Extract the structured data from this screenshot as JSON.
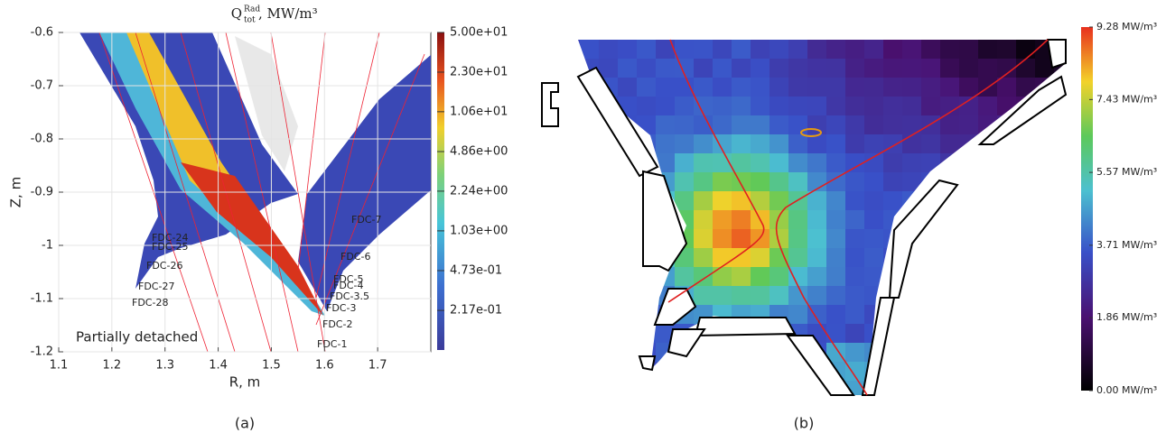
{
  "chart_data": [
    {
      "type": "heatmap",
      "title_symbol": "Q",
      "title_superscript": "Rad",
      "title_subscript": "tot",
      "title_unit": ", MW/m³",
      "x_label": "R, m",
      "y_label": "Z, m",
      "xlim": [
        1.1,
        1.8
      ],
      "xticks": [
        1.1,
        1.2,
        1.3,
        1.4,
        1.5,
        1.6,
        1.7
      ],
      "ylim": [
        -1.2,
        -0.6
      ],
      "yticks": [
        -0.6,
        -0.7,
        -0.8,
        -0.9,
        -1,
        -1.1,
        -1.2
      ],
      "colorbar_log_scale": true,
      "clim": [
        0.1,
        50
      ],
      "colorbar_ticks": [
        {
          "value": 50,
          "label": "5.00e+01"
        },
        {
          "value": 23,
          "label": "2.30e+01"
        },
        {
          "value": 10.6,
          "label": "1.06e+01"
        },
        {
          "value": 4.86,
          "label": "4.86e+00"
        },
        {
          "value": 2.24,
          "label": "2.24e+00"
        },
        {
          "value": 1.03,
          "label": "1.03e+00"
        },
        {
          "value": 0.473,
          "label": "4.73e-01"
        },
        {
          "value": 0.217,
          "label": "2.17e-01"
        }
      ],
      "annotations": [
        "FDC-7",
        "FDC-6",
        "FDC-5",
        "FDC-4",
        "FDC-3.5",
        "FDC-3",
        "FDC-2",
        "FDC-1",
        "FDC-24",
        "FDC-25",
        "FDC-26",
        "FDC-27",
        "FDC-28",
        "Partially detached"
      ],
      "panel_label": "(a)"
    },
    {
      "type": "image",
      "clim": [
        0,
        9.28
      ],
      "colorbar_ticks": [
        {
          "value": 9.28,
          "label": "9.28 MW/m³"
        },
        {
          "value": 7.43,
          "label": "7.43 MW/m³"
        },
        {
          "value": 5.57,
          "label": "5.57 MW/m³"
        },
        {
          "value": 3.71,
          "label": "3.71 MW/m³"
        },
        {
          "value": 1.86,
          "label": "1.86 MW/m³"
        },
        {
          "value": 0,
          "label": "0.00 MW/m³"
        }
      ],
      "panel_label": "(b)"
    }
  ]
}
